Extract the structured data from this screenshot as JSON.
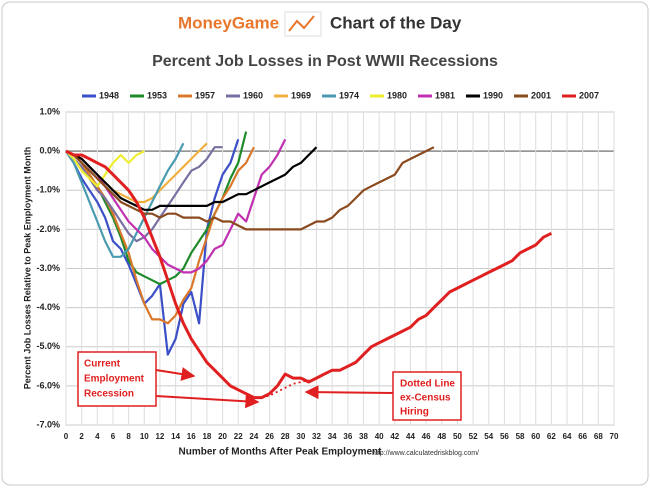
{
  "header": {
    "brand": "MoneyGame",
    "label": "Chart of the Day"
  },
  "chart_data": {
    "type": "line",
    "title": "Percent Job Losses in Post WWII Recessions",
    "x_label": "Number of Months After Peak Employment",
    "y_label": "Percent Job Losses Relative to Peak Employment Month",
    "source": "http://www.calculatedriskblog.com/",
    "annotations": [
      {
        "lines": [
          "Current",
          "Employment",
          "Recession"
        ]
      },
      {
        "lines": [
          "Dotted Line",
          "ex-Census",
          "Hiring"
        ]
      }
    ],
    "grid": true,
    "xlim": [
      0,
      70
    ],
    "xticks": [
      0,
      2,
      4,
      6,
      8,
      10,
      12,
      14,
      16,
      18,
      20,
      22,
      24,
      26,
      28,
      30,
      32,
      34,
      36,
      38,
      40,
      42,
      44,
      46,
      48,
      50,
      52,
      54,
      56,
      58,
      60,
      62,
      64,
      66,
      68,
      70
    ],
    "ylim": [
      -7,
      1
    ],
    "yticks": [
      {
        "value": 1,
        "label": "1.0%"
      },
      {
        "value": 0,
        "label": "0.0%"
      },
      {
        "value": -1,
        "label": "-1.0%"
      },
      {
        "value": -2,
        "label": "-2.0%"
      },
      {
        "value": -3,
        "label": "-3.0%"
      },
      {
        "value": -4,
        "label": "-4.0%"
      },
      {
        "value": -5,
        "label": "-5.0%"
      },
      {
        "value": -6,
        "label": "-6.0%"
      },
      {
        "value": -7,
        "label": "-7.0%"
      }
    ],
    "x": [
      0,
      1,
      2,
      3,
      4,
      5,
      6,
      7,
      8,
      9,
      10,
      11,
      12,
      13,
      14,
      15,
      16,
      17,
      18,
      19,
      20,
      21,
      22,
      23,
      24,
      25,
      26,
      27,
      28,
      29,
      30,
      31,
      32,
      33,
      34,
      35,
      36,
      37,
      38,
      39,
      40,
      41,
      42,
      43,
      44,
      45,
      46,
      47,
      48,
      49,
      50,
      51,
      52,
      53,
      54,
      55,
      56,
      57,
      58,
      59,
      60,
      61,
      62
    ],
    "series": [
      {
        "name": "1948",
        "color": "#3a4fc8",
        "values": [
          0,
          -0.3,
          -0.7,
          -1.0,
          -1.3,
          -1.7,
          -2.3,
          -2.5,
          -2.9,
          -3.4,
          -3.9,
          -3.7,
          -3.4,
          -5.2,
          -4.8,
          -3.9,
          -3.6,
          -4.4,
          -2.0,
          -1.2,
          -0.6,
          -0.3,
          0.3,
          null,
          null,
          null,
          null,
          null,
          null,
          null,
          null,
          null,
          null,
          null,
          null,
          null,
          null,
          null,
          null,
          null,
          null,
          null,
          null,
          null,
          null,
          null,
          null,
          null,
          null,
          null,
          null,
          null,
          null,
          null,
          null,
          null,
          null,
          null,
          null,
          null,
          null,
          null,
          null
        ]
      },
      {
        "name": "1953",
        "color": "#1f8a2a",
        "values": [
          0,
          -0.1,
          -0.3,
          -0.6,
          -0.9,
          -1.3,
          -1.7,
          -2.2,
          -2.8,
          -3.1,
          -3.2,
          -3.3,
          -3.4,
          -3.3,
          -3.2,
          -3.0,
          -2.6,
          -2.3,
          -2.0,
          -1.6,
          -1.2,
          -0.7,
          -0.3,
          0.5,
          null,
          null,
          null,
          null,
          null,
          null,
          null,
          null,
          null,
          null,
          null,
          null,
          null,
          null,
          null,
          null,
          null,
          null,
          null,
          null,
          null,
          null,
          null,
          null,
          null,
          null,
          null,
          null,
          null,
          null,
          null,
          null,
          null,
          null,
          null,
          null,
          null,
          null,
          null
        ]
      },
      {
        "name": "1957",
        "color": "#d9782b",
        "values": [
          0,
          -0.1,
          -0.3,
          -0.6,
          -0.9,
          -1.2,
          -1.6,
          -2.1,
          -2.6,
          -3.3,
          -3.9,
          -4.3,
          -4.3,
          -4.4,
          -4.2,
          -3.8,
          -3.5,
          -2.8,
          -2.2,
          -1.6,
          -1.2,
          -0.9,
          -0.5,
          -0.3,
          0.1,
          null,
          null,
          null,
          null,
          null,
          null,
          null,
          null,
          null,
          null,
          null,
          null,
          null,
          null,
          null,
          null,
          null,
          null,
          null,
          null,
          null,
          null,
          null,
          null,
          null,
          null,
          null,
          null,
          null,
          null,
          null,
          null,
          null,
          null,
          null,
          null,
          null,
          null
        ]
      },
      {
        "name": "1960",
        "color": "#7a6fa0",
        "values": [
          0,
          -0.2,
          -0.4,
          -0.7,
          -1.0,
          -1.2,
          -1.5,
          -1.8,
          -2.1,
          -2.3,
          -2.2,
          -2.0,
          -1.7,
          -1.4,
          -1.1,
          -0.8,
          -0.5,
          -0.4,
          -0.2,
          0.1,
          0.1,
          null,
          null,
          null,
          null,
          null,
          null,
          null,
          null,
          null,
          null,
          null,
          null,
          null,
          null,
          null,
          null,
          null,
          null,
          null,
          null,
          null,
          null,
          null,
          null,
          null,
          null,
          null,
          null,
          null,
          null,
          null,
          null,
          null,
          null,
          null,
          null,
          null,
          null,
          null,
          null,
          null,
          null
        ]
      },
      {
        "name": "1969",
        "color": "#f0b040",
        "values": [
          0,
          -0.1,
          -0.2,
          -0.4,
          -0.6,
          -0.8,
          -1.0,
          -1.1,
          -1.2,
          -1.3,
          -1.3,
          -1.2,
          -1.0,
          -0.8,
          -0.6,
          -0.4,
          -0.2,
          0,
          0.2,
          null,
          null,
          null,
          null,
          null,
          null,
          null,
          null,
          null,
          null,
          null,
          null,
          null,
          null,
          null,
          null,
          null,
          null,
          null,
          null,
          null,
          null,
          null,
          null,
          null,
          null,
          null,
          null,
          null,
          null,
          null,
          null,
          null,
          null,
          null,
          null,
          null,
          null,
          null,
          null,
          null,
          null,
          null,
          null
        ]
      },
      {
        "name": "1974",
        "color": "#4a9ab0",
        "values": [
          0,
          -0.3,
          -0.8,
          -1.3,
          -1.8,
          -2.3,
          -2.7,
          -2.7,
          -2.5,
          -2.1,
          -1.7,
          -1.3,
          -0.9,
          -0.5,
          -0.2,
          0.2,
          null,
          null,
          null,
          null,
          null,
          null,
          null,
          null,
          null,
          null,
          null,
          null,
          null,
          null,
          null,
          null,
          null,
          null,
          null,
          null,
          null,
          null,
          null,
          null,
          null,
          null,
          null,
          null,
          null,
          null,
          null,
          null,
          null,
          null,
          null,
          null,
          null,
          null,
          null,
          null,
          null,
          null,
          null,
          null,
          null,
          null,
          null
        ]
      },
      {
        "name": "1980",
        "color": "#eeee30",
        "values": [
          0,
          -0.2,
          -0.5,
          -0.7,
          -0.9,
          -0.6,
          -0.3,
          -0.1,
          -0.3,
          -0.1,
          0,
          null,
          null,
          null,
          null,
          null,
          null,
          null,
          null,
          null,
          null,
          null,
          null,
          null,
          null,
          null,
          null,
          null,
          null,
          null,
          null,
          null,
          null,
          null,
          null,
          null,
          null,
          null,
          null,
          null,
          null,
          null,
          null,
          null,
          null,
          null,
          null,
          null,
          null,
          null,
          null,
          null,
          null,
          null,
          null,
          null,
          null,
          null,
          null,
          null,
          null,
          null,
          null
        ]
      },
      {
        "name": "1981",
        "color": "#c030b0",
        "values": [
          0,
          -0.1,
          -0.2,
          -0.4,
          -0.6,
          -0.9,
          -1.2,
          -1.5,
          -1.8,
          -2.0,
          -2.2,
          -2.5,
          -2.7,
          -2.9,
          -3.0,
          -3.1,
          -3.1,
          -3.0,
          -2.8,
          -2.5,
          -2.4,
          -2.0,
          -1.6,
          -1.8,
          -1.2,
          -0.6,
          -0.4,
          -0.1,
          0.3,
          null,
          null,
          null,
          null,
          null,
          null,
          null,
          null,
          null,
          null,
          null,
          null,
          null,
          null,
          null,
          null,
          null,
          null,
          null,
          null,
          null,
          null,
          null,
          null,
          null,
          null,
          null,
          null,
          null,
          null,
          null,
          null,
          null,
          null
        ]
      },
      {
        "name": "1990",
        "color": "#000000",
        "values": [
          0,
          -0.1,
          -0.2,
          -0.4,
          -0.6,
          -0.8,
          -1.0,
          -1.2,
          -1.3,
          -1.4,
          -1.5,
          -1.5,
          -1.4,
          -1.4,
          -1.4,
          -1.4,
          -1.4,
          -1.4,
          -1.4,
          -1.3,
          -1.3,
          -1.2,
          -1.1,
          -1.1,
          -1.0,
          -0.9,
          -0.8,
          -0.7,
          -0.6,
          -0.4,
          -0.3,
          -0.1,
          0.1,
          null,
          null,
          null,
          null,
          null,
          null,
          null,
          null,
          null,
          null,
          null,
          null,
          null,
          null,
          null,
          null,
          null,
          null,
          null,
          null,
          null,
          null,
          null,
          null,
          null,
          null,
          null,
          null,
          null,
          null
        ]
      },
      {
        "name": "2001",
        "color": "#8b4a1e",
        "values": [
          0,
          -0.1,
          -0.3,
          -0.5,
          -0.7,
          -0.9,
          -1.1,
          -1.3,
          -1.4,
          -1.5,
          -1.6,
          -1.6,
          -1.7,
          -1.6,
          -1.6,
          -1.7,
          -1.7,
          -1.7,
          -1.8,
          -1.7,
          -1.8,
          -1.8,
          -1.9,
          -2.0,
          -2.0,
          -2.0,
          -2.0,
          -2.0,
          -2.0,
          -2.0,
          -2.0,
          -1.9,
          -1.8,
          -1.8,
          -1.7,
          -1.5,
          -1.4,
          -1.2,
          -1.0,
          -0.9,
          -0.8,
          -0.7,
          -0.6,
          -0.3,
          -0.2,
          -0.1,
          0,
          0.1,
          null,
          null,
          null,
          null,
          null,
          null,
          null,
          null,
          null,
          null,
          null,
          null,
          null,
          null,
          null
        ]
      },
      {
        "name": "2007",
        "color": "#e02020",
        "values": [
          0,
          -0.1,
          -0.1,
          -0.2,
          -0.3,
          -0.4,
          -0.6,
          -0.8,
          -1.0,
          -1.3,
          -1.7,
          -2.2,
          -2.7,
          -3.3,
          -3.9,
          -4.4,
          -4.8,
          -5.1,
          -5.4,
          -5.6,
          -5.8,
          -6.0,
          -6.1,
          -6.2,
          -6.3,
          -6.3,
          -6.2,
          -6.0,
          -5.7,
          -5.8,
          -5.8,
          -5.9,
          -5.8,
          -5.7,
          -5.6,
          -5.6,
          -5.5,
          -5.4,
          -5.2,
          -5.0,
          -4.9,
          -4.8,
          -4.7,
          -4.6,
          -4.5,
          -4.3,
          -4.2,
          -4.0,
          -3.8,
          -3.6,
          -3.5,
          -3.4,
          -3.3,
          -3.2,
          -3.1,
          -3.0,
          -2.9,
          -2.8,
          -2.6,
          -2.5,
          -2.4,
          -2.2,
          -2.1
        ]
      },
      {
        "color": "#e02020",
        "dashed": true,
        "values": [
          null,
          null,
          null,
          null,
          null,
          null,
          null,
          null,
          null,
          null,
          null,
          null,
          null,
          null,
          null,
          null,
          null,
          null,
          null,
          null,
          null,
          null,
          null,
          null,
          null,
          -6.3,
          -6.25,
          -6.15,
          -6.05,
          -5.95,
          -5.9,
          -5.85,
          null,
          null,
          null,
          null,
          null,
          null,
          null,
          null,
          null,
          null,
          null,
          null,
          null,
          null,
          null,
          null,
          null,
          null,
          null,
          null,
          null,
          null,
          null,
          null,
          null,
          null,
          null,
          null,
          null,
          null,
          null
        ]
      }
    ]
  }
}
